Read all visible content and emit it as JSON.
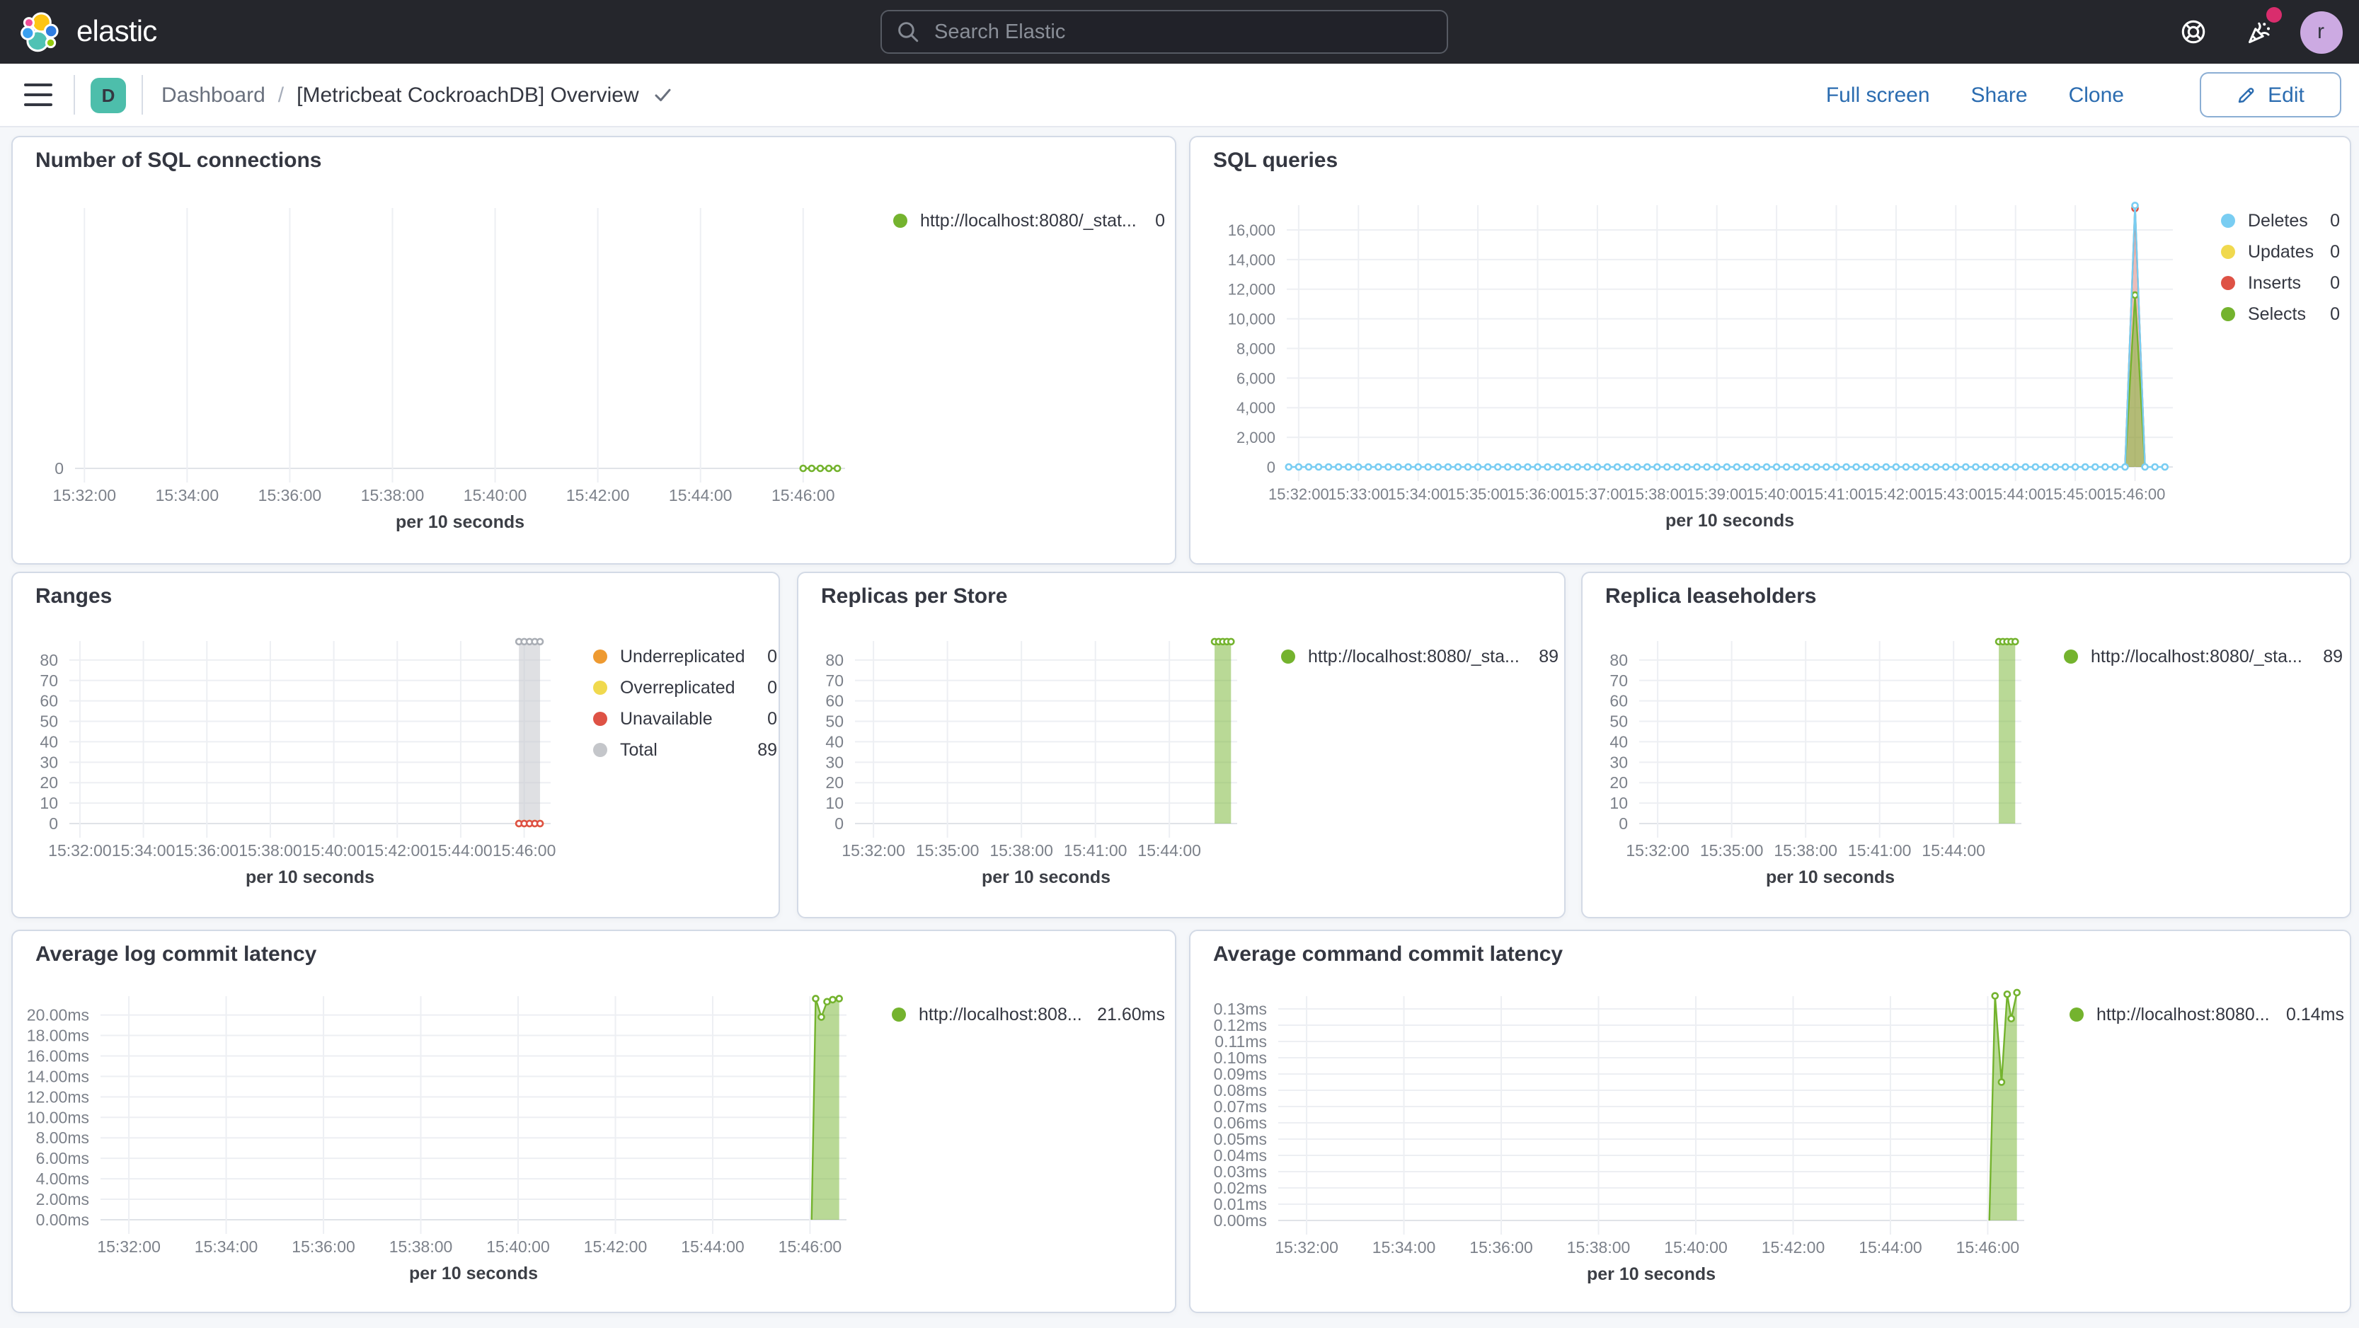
{
  "header": {
    "brand": "elastic",
    "search_placeholder": "Search Elastic",
    "avatar_letter": "r",
    "icons": [
      "help-icon",
      "newsfeed-icon",
      "user-avatar"
    ]
  },
  "toolbar": {
    "space_badge": "D",
    "breadcrumb_root": "Dashboard",
    "breadcrumb_separator": "/",
    "title": "[Metricbeat CockroachDB] Overview",
    "actions": [
      "Full screen",
      "Share",
      "Clone"
    ],
    "edit_label": "Edit"
  },
  "colors": {
    "header_bg": "#25262c",
    "accent_blue": "#2b6cb0",
    "badge_teal": "#4dbeab",
    "notification_pink": "#d92d6d",
    "avatar_purple": "#ccaae2",
    "dashboard_bg": "#f5f7fa",
    "panel_border": "#d3dae6",
    "series_green": "#74b32e",
    "series_blue": "#79cdf2",
    "series_yellow": "#f0d94e",
    "series_red": "#de5245",
    "series_orange": "#ee9a31",
    "series_gray": "#c4c6ca",
    "logo": {
      "yellow": "#fec514",
      "pink": "#f04e98",
      "teal": "#4fc2b4",
      "blue_left": "#3aa0f0",
      "blue_right": "#2f7de1",
      "green": "#93c90e"
    }
  },
  "chart_data": [
    {
      "id": "sql-connections",
      "type": "line",
      "title": "Number of SQL connections",
      "x_axis_label": "per 10 seconds",
      "x_domain": [
        "15:31:49",
        "15:46:49"
      ],
      "x_ticks": [
        "15:32:00",
        "15:34:00",
        "15:36:00",
        "15:38:00",
        "15:40:00",
        "15:42:00",
        "15:44:00",
        "15:46:00"
      ],
      "ylim": [
        0,
        1
      ],
      "y_ticks": [
        {
          "v": 0,
          "label": "0"
        }
      ],
      "legend": [
        {
          "label": "http://localhost:8080/_stat...",
          "value": "0",
          "color": "#74b32e"
        }
      ],
      "series": [
        {
          "name": "http://localhost:8080/_stat...",
          "color": "#74b32e",
          "markers": "all",
          "points": [
            [
              "15:46:00",
              0
            ],
            [
              "15:46:10",
              0
            ],
            [
              "15:46:20",
              0
            ],
            [
              "15:46:30",
              0
            ],
            [
              "15:46:40",
              0
            ]
          ]
        }
      ]
    },
    {
      "id": "sql-queries",
      "type": "line",
      "title": "SQL queries",
      "x_axis_label": "per 10 seconds",
      "x_domain": [
        "15:31:48",
        "15:46:38"
      ],
      "x_ticks": [
        "15:32:00",
        "15:33:00",
        "15:34:00",
        "15:35:00",
        "15:36:00",
        "15:37:00",
        "15:38:00",
        "15:39:00",
        "15:40:00",
        "15:41:00",
        "15:42:00",
        "15:43:00",
        "15:44:00",
        "15:45:00",
        "15:46:00"
      ],
      "ylim": [
        0,
        17670
      ],
      "y_ticks": [
        {
          "v": 16000,
          "label": "16,000"
        },
        {
          "v": 14000,
          "label": "14,000"
        },
        {
          "v": 12000,
          "label": "12,000"
        },
        {
          "v": 10000,
          "label": "10,000"
        },
        {
          "v": 8000,
          "label": "8,000"
        },
        {
          "v": 6000,
          "label": "6,000"
        },
        {
          "v": 4000,
          "label": "4,000"
        },
        {
          "v": 2000,
          "label": "2,000"
        },
        {
          "v": 0,
          "label": "0"
        }
      ],
      "legend": [
        {
          "label": "Deletes",
          "value": "0",
          "color": "#79cdf2"
        },
        {
          "label": "Updates",
          "value": "0",
          "color": "#f0d94e"
        },
        {
          "label": "Inserts",
          "value": "0",
          "color": "#de5245"
        },
        {
          "label": "Selects",
          "value": "0",
          "color": "#74b32e"
        }
      ],
      "series": [
        {
          "name": "Updates",
          "color": "#f0d94e",
          "markers": "peaks",
          "points": [
            [
              "15:45:50",
              0
            ],
            [
              "15:46:00",
              17550
            ],
            [
              "15:46:10",
              0
            ]
          ]
        },
        {
          "name": "Inserts",
          "color": "#de5245",
          "fill": "rgba(222,82,69,0.35)",
          "markers": "peaks",
          "points": [
            [
              "15:45:50",
              0
            ],
            [
              "15:46:00",
              17450
            ],
            [
              "15:46:10",
              0
            ]
          ]
        },
        {
          "name": "Selects",
          "color": "#74b32e",
          "fill": "rgba(116,179,46,0.5)",
          "markers": "peaks",
          "points": [
            [
              "15:45:50",
              0
            ],
            [
              "15:46:00",
              11600
            ],
            [
              "15:46:10",
              0
            ]
          ]
        },
        {
          "name": "Deletes",
          "color": "#79cdf2",
          "markers": "all",
          "baseline": {
            "from": "15:31:50",
            "to": "15:46:36",
            "every": 10,
            "value": 0
          },
          "points": [
            [
              "15:46:00",
              17650
            ]
          ]
        }
      ]
    },
    {
      "id": "ranges",
      "type": "line",
      "title": "Ranges",
      "x_axis_label": "per 10 seconds",
      "x_domain": [
        "15:31:40",
        "15:46:50"
      ],
      "x_ticks": [
        "15:32:00",
        "15:34:00",
        "15:36:00",
        "15:38:00",
        "15:40:00",
        "15:42:00",
        "15:44:00",
        "15:46:00"
      ],
      "ylim": [
        0,
        89.3
      ],
      "y_ticks": [
        {
          "v": 80,
          "label": "80"
        },
        {
          "v": 70,
          "label": "70"
        },
        {
          "v": 60,
          "label": "60"
        },
        {
          "v": 50,
          "label": "50"
        },
        {
          "v": 40,
          "label": "40"
        },
        {
          "v": 30,
          "label": "30"
        },
        {
          "v": 20,
          "label": "20"
        },
        {
          "v": 10,
          "label": "10"
        },
        {
          "v": 0,
          "label": "0"
        }
      ],
      "legend": [
        {
          "label": "Underreplicated",
          "value": "0",
          "color": "#ee9a31"
        },
        {
          "label": "Overreplicated",
          "value": "0",
          "color": "#f0d94e"
        },
        {
          "label": "Unavailable",
          "value": "0",
          "color": "#de5245"
        },
        {
          "label": "Total",
          "value": "89",
          "color": "#c4c6ca"
        }
      ],
      "series": [
        {
          "name": "Total",
          "color": "#aaaeb5",
          "fill": "rgba(197,199,204,0.55)",
          "markers": "all",
          "points": [
            [
              "15:45:50",
              89
            ],
            [
              "15:46:00",
              89
            ],
            [
              "15:46:10",
              89
            ],
            [
              "15:46:20",
              89
            ],
            [
              "15:46:30",
              89
            ]
          ]
        },
        {
          "name": "Underreplicated",
          "color": "#ee9a31",
          "markers": "all",
          "points": [
            [
              "15:45:50",
              0
            ],
            [
              "15:46:00",
              0
            ],
            [
              "15:46:10",
              0
            ],
            [
              "15:46:20",
              0
            ],
            [
              "15:46:30",
              0
            ]
          ]
        },
        {
          "name": "Overreplicated",
          "color": "#f0d94e",
          "markers": "all",
          "points": [
            [
              "15:45:50",
              0
            ],
            [
              "15:46:00",
              0
            ],
            [
              "15:46:10",
              0
            ],
            [
              "15:46:20",
              0
            ],
            [
              "15:46:30",
              0
            ]
          ]
        },
        {
          "name": "Unavailable",
          "color": "#de5245",
          "markers": "all",
          "points": [
            [
              "15:45:50",
              0
            ],
            [
              "15:46:00",
              0
            ],
            [
              "15:46:10",
              0
            ],
            [
              "15:46:20",
              0
            ],
            [
              "15:46:30",
              0
            ]
          ]
        }
      ]
    },
    {
      "id": "replicas-per-store",
      "type": "line",
      "title": "Replicas per Store",
      "x_axis_label": "per 10 seconds",
      "x_domain": [
        "15:31:15",
        "15:46:45"
      ],
      "x_ticks": [
        "15:32:00",
        "15:35:00",
        "15:38:00",
        "15:41:00",
        "15:44:00"
      ],
      "ylim": [
        0,
        89.3
      ],
      "y_ticks": [
        {
          "v": 80,
          "label": "80"
        },
        {
          "v": 70,
          "label": "70"
        },
        {
          "v": 60,
          "label": "60"
        },
        {
          "v": 50,
          "label": "50"
        },
        {
          "v": 40,
          "label": "40"
        },
        {
          "v": 30,
          "label": "30"
        },
        {
          "v": 20,
          "label": "20"
        },
        {
          "v": 10,
          "label": "10"
        },
        {
          "v": 0,
          "label": "0"
        }
      ],
      "legend": [
        {
          "label": "http://localhost:8080/_sta...",
          "value": "89",
          "color": "#74b32e"
        }
      ],
      "series": [
        {
          "name": "http://localhost:8080/_sta...",
          "color": "#74b32e",
          "fill": "rgba(116,179,46,0.5)",
          "markers": "all",
          "points": [
            [
              "15:45:50",
              89
            ],
            [
              "15:46:00",
              89
            ],
            [
              "15:46:10",
              89
            ],
            [
              "15:46:20",
              89
            ],
            [
              "15:46:30",
              89
            ]
          ]
        }
      ]
    },
    {
      "id": "replica-leaseholders",
      "type": "line",
      "title": "Replica leaseholders",
      "x_axis_label": "per 10 seconds",
      "x_domain": [
        "15:31:15",
        "15:46:45"
      ],
      "x_ticks": [
        "15:32:00",
        "15:35:00",
        "15:38:00",
        "15:41:00",
        "15:44:00"
      ],
      "ylim": [
        0,
        89.3
      ],
      "y_ticks": [
        {
          "v": 80,
          "label": "80"
        },
        {
          "v": 70,
          "label": "70"
        },
        {
          "v": 60,
          "label": "60"
        },
        {
          "v": 50,
          "label": "50"
        },
        {
          "v": 40,
          "label": "40"
        },
        {
          "v": 30,
          "label": "30"
        },
        {
          "v": 20,
          "label": "20"
        },
        {
          "v": 10,
          "label": "10"
        },
        {
          "v": 0,
          "label": "0"
        }
      ],
      "legend": [
        {
          "label": "http://localhost:8080/_sta...",
          "value": "89",
          "color": "#74b32e"
        }
      ],
      "series": [
        {
          "name": "http://localhost:8080/_sta...",
          "color": "#74b32e",
          "fill": "rgba(116,179,46,0.5)",
          "markers": "all",
          "points": [
            [
              "15:45:50",
              89
            ],
            [
              "15:46:00",
              89
            ],
            [
              "15:46:10",
              89
            ],
            [
              "15:46:20",
              89
            ],
            [
              "15:46:30",
              89
            ]
          ]
        }
      ]
    },
    {
      "id": "avg-log-commit-latency",
      "type": "area",
      "title": "Average log commit latency",
      "x_axis_label": "per 10 seconds",
      "x_domain": [
        "15:31:25",
        "15:46:45"
      ],
      "x_ticks": [
        "15:32:00",
        "15:34:00",
        "15:36:00",
        "15:38:00",
        "15:40:00",
        "15:42:00",
        "15:44:00",
        "15:46:00"
      ],
      "ylim": [
        0,
        21.84
      ],
      "y_ticks": [
        {
          "v": 20,
          "label": "20.00ms"
        },
        {
          "v": 18,
          "label": "18.00ms"
        },
        {
          "v": 16,
          "label": "16.00ms"
        },
        {
          "v": 14,
          "label": "14.00ms"
        },
        {
          "v": 12,
          "label": "12.00ms"
        },
        {
          "v": 10,
          "label": "10.00ms"
        },
        {
          "v": 8,
          "label": "8.00ms"
        },
        {
          "v": 6,
          "label": "6.00ms"
        },
        {
          "v": 4,
          "label": "4.00ms"
        },
        {
          "v": 2,
          "label": "2.00ms"
        },
        {
          "v": 0,
          "label": "0.00ms"
        }
      ],
      "legend": [
        {
          "label": "http://localhost:808...",
          "value": "21.60ms",
          "color": "#74b32e"
        }
      ],
      "series": [
        {
          "name": "http://localhost:808...",
          "color": "#74b32e",
          "fill": "rgba(116,179,46,0.5)",
          "markers": "peaks",
          "points": [
            [
              "15:46:02",
              0
            ],
            [
              "15:46:07",
              21.6
            ],
            [
              "15:46:14",
              19.8
            ],
            [
              "15:46:21",
              21.3
            ],
            [
              "15:46:28",
              21.5
            ],
            [
              "15:46:36",
              21.6
            ]
          ]
        }
      ]
    },
    {
      "id": "avg-command-commit-latency",
      "type": "area",
      "title": "Average command commit latency",
      "x_axis_label": "per 10 seconds",
      "x_domain": [
        "15:31:25",
        "15:46:45"
      ],
      "x_ticks": [
        "15:32:00",
        "15:34:00",
        "15:36:00",
        "15:38:00",
        "15:40:00",
        "15:42:00",
        "15:44:00",
        "15:46:00"
      ],
      "ylim": [
        0,
        0.1378
      ],
      "y_ticks": [
        {
          "v": 0.13,
          "label": "0.13ms"
        },
        {
          "v": 0.12,
          "label": "0.12ms"
        },
        {
          "v": 0.11,
          "label": "0.11ms"
        },
        {
          "v": 0.1,
          "label": "0.10ms"
        },
        {
          "v": 0.09,
          "label": "0.09ms"
        },
        {
          "v": 0.08,
          "label": "0.08ms"
        },
        {
          "v": 0.07,
          "label": "0.07ms"
        },
        {
          "v": 0.06,
          "label": "0.06ms"
        },
        {
          "v": 0.05,
          "label": "0.05ms"
        },
        {
          "v": 0.04,
          "label": "0.04ms"
        },
        {
          "v": 0.03,
          "label": "0.03ms"
        },
        {
          "v": 0.02,
          "label": "0.02ms"
        },
        {
          "v": 0.01,
          "label": "0.01ms"
        },
        {
          "v": 0,
          "label": "0.00ms"
        }
      ],
      "legend": [
        {
          "label": "http://localhost:8080...",
          "value": "0.14ms",
          "color": "#74b32e"
        }
      ],
      "series": [
        {
          "name": "http://localhost:8080...",
          "color": "#74b32e",
          "fill": "rgba(116,179,46,0.5)",
          "markers": "peaks",
          "points": [
            [
              "15:46:02",
              0
            ],
            [
              "15:46:09",
              0.138
            ],
            [
              "15:46:17",
              0.085
            ],
            [
              "15:46:24",
              0.139
            ],
            [
              "15:46:29",
              0.124
            ],
            [
              "15:46:36",
              0.14
            ]
          ]
        }
      ]
    }
  ]
}
